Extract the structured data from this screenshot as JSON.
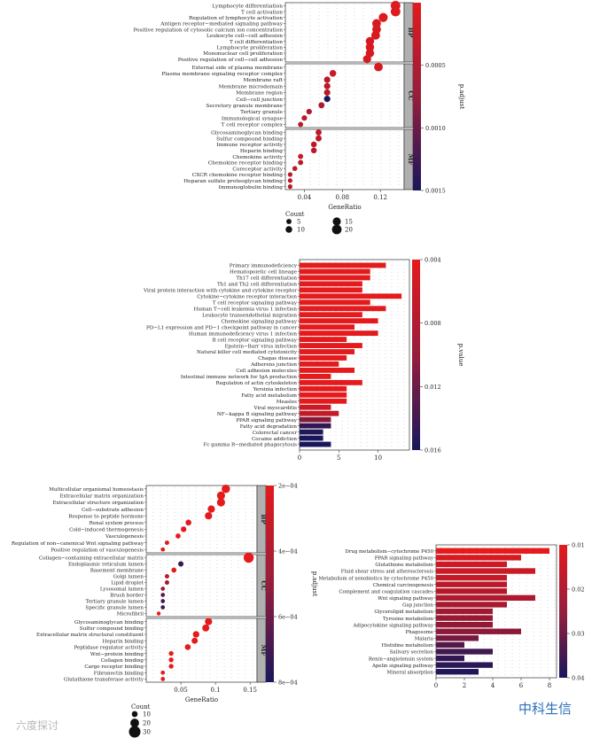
{
  "watermarks": {
    "left": "六度探讨",
    "right": "中科生信"
  },
  "chart_data": [
    {
      "type": "scatter",
      "subtype": "dotplot-faceted",
      "id": "panel_a",
      "xlabel": "GeneRatio",
      "xticks": [
        0.04,
        0.08,
        0.12
      ],
      "xlim": [
        0.02,
        0.145
      ],
      "facets": [
        {
          "name": "BP",
          "terms": [
            {
              "term": "Lymphocyte differentiation",
              "ratio": 0.136,
              "p": 5e-05,
              "count": 20
            },
            {
              "term": "T cell activation",
              "ratio": 0.136,
              "p": 5e-05,
              "count": 20
            },
            {
              "term": "Regulation of lymphocyte activation",
              "ratio": 0.123,
              "p": 5e-05,
              "count": 18
            },
            {
              "term": "Antigen receptor−mediated signaling pathway",
              "ratio": 0.116,
              "p": 0.0001,
              "count": 17
            },
            {
              "term": "Positive regulation of cytosolic calcium ion concentration",
              "ratio": 0.116,
              "p": 0.0001,
              "count": 17
            },
            {
              "term": "Leukocyte cell−cell adhesion",
              "ratio": 0.115,
              "p": 0.0001,
              "count": 17
            },
            {
              "term": "T cell differentiation",
              "ratio": 0.109,
              "p": 0.0001,
              "count": 16
            },
            {
              "term": "Lymphocyte proliferation",
              "ratio": 0.109,
              "p": 0.0001,
              "count": 16
            },
            {
              "term": "Mononuclear cell proliferation",
              "ratio": 0.109,
              "p": 0.0001,
              "count": 16
            },
            {
              "term": "Positive regulation of cell−cell adhesion",
              "ratio": 0.106,
              "p": 0.0001,
              "count": 15
            }
          ]
        },
        {
          "name": "CC",
          "terms": [
            {
              "term": "External side of plasma membrane",
              "ratio": 0.118,
              "p": 0.0001,
              "count": 17
            },
            {
              "term": "Plasma membrane signaling receptor complex",
              "ratio": 0.07,
              "p": 0.0002,
              "count": 10
            },
            {
              "term": "Membrane raft",
              "ratio": 0.064,
              "p": 0.0003,
              "count": 9
            },
            {
              "term": "Membrane microdomain",
              "ratio": 0.064,
              "p": 0.0003,
              "count": 9
            },
            {
              "term": "Membrane region",
              "ratio": 0.064,
              "p": 0.0003,
              "count": 9
            },
            {
              "term": "Cell−cell junction",
              "ratio": 0.064,
              "p": 0.0015,
              "count": 9
            },
            {
              "term": "Secretory granule membrane",
              "ratio": 0.058,
              "p": 0.0004,
              "count": 8
            },
            {
              "term": "Tertiary granule",
              "ratio": 0.045,
              "p": 0.0004,
              "count": 6
            },
            {
              "term": "Immunological synapse",
              "ratio": 0.04,
              "p": 0.0003,
              "count": 6
            },
            {
              "term": "T cell receptor complex",
              "ratio": 0.036,
              "p": 0.0003,
              "count": 5
            }
          ]
        },
        {
          "name": "MF",
          "terms": [
            {
              "term": "Glycosaminoglycan binding",
              "ratio": 0.055,
              "p": 0.0003,
              "count": 8
            },
            {
              "term": "Sulfur compound binding",
              "ratio": 0.055,
              "p": 0.0003,
              "count": 8
            },
            {
              "term": "Immune receptor activity",
              "ratio": 0.05,
              "p": 0.0003,
              "count": 7
            },
            {
              "term": "Heparin binding",
              "ratio": 0.05,
              "p": 0.0003,
              "count": 7
            },
            {
              "term": "Chemokine activity",
              "ratio": 0.036,
              "p": 0.0002,
              "count": 5
            },
            {
              "term": "Chemokine receptor binding",
              "ratio": 0.036,
              "p": 0.0003,
              "count": 5
            },
            {
              "term": "Coreceptor activity",
              "ratio": 0.03,
              "p": 0.0003,
              "count": 4
            },
            {
              "term": "CXCR chemokine receptor binding",
              "ratio": 0.025,
              "p": 0.0003,
              "count": 3
            },
            {
              "term": "Heparan sulfate proteoglycan binding",
              "ratio": 0.025,
              "p": 0.0003,
              "count": 3
            },
            {
              "term": "Immunoglobulin binding",
              "ratio": 0.025,
              "p": 0.0003,
              "count": 3
            }
          ]
        }
      ],
      "color_scale": {
        "title": "p.adjust",
        "range": [
          0.0,
          0.0015
        ],
        "ticks": [
          "0.0005",
          "0.0010",
          "0.0015"
        ]
      },
      "size_legend": {
        "title": "Count",
        "values": [
          5,
          10,
          15,
          20
        ]
      }
    },
    {
      "type": "bar",
      "subtype": "horizontal",
      "id": "panel_b",
      "categories": [
        "Primary immunodeficiency",
        "Hematopoietic cell lineage",
        "Th17 cell differentiation",
        "Th1 and Th2 cell differentiation",
        "Viral protein interaction with cytokine and cytokine receptor",
        "Cytokine−cytokine receptor interaction",
        "T cell receptor signaling pathway",
        "Human T−cell leukemia virus 1 infection",
        "Leukocyte transendothelial migration",
        "Chemokine signaling pathway",
        "PD−L1 expression and PD−1 checkpoint pathway in cancer",
        "Human immunodeficiency virus 1 infection",
        "B cell receptor signaling pathway",
        "Epstein−Barr virus infection",
        "Natural killer cell mediated cytotoxicity",
        "Chagas disease",
        "Adherens junction",
        "Cell adhesion molecules",
        "Intestinal immune network for IgA production",
        "Regulation of actin cytoskeleton",
        "Yersinia infection",
        "Fatty acid metabolism",
        "Measles",
        "Viral myocarditis",
        "NF−kappa B signaling pathway",
        "PPAR signaling pathway",
        "Fatty acid degradation",
        "Colorectal cancer",
        "Cocaine addiction",
        "Fc gamma R−mediated phagocytosis"
      ],
      "values": [
        11,
        9,
        9,
        8,
        8,
        13,
        9,
        11,
        8,
        10,
        7,
        10,
        6,
        8,
        7,
        6,
        5,
        7,
        4,
        8,
        6,
        6,
        6,
        4,
        5,
        4,
        4,
        3,
        3,
        4
      ],
      "pvalues": [
        0.004,
        0.004,
        0.004,
        0.004,
        0.004,
        0.004,
        0.004,
        0.004,
        0.004,
        0.004,
        0.004,
        0.004,
        0.004,
        0.004,
        0.004,
        0.004,
        0.004,
        0.004,
        0.004,
        0.004,
        0.004,
        0.004,
        0.004,
        0.0055,
        0.006,
        0.0095,
        0.0145,
        0.0155,
        0.016,
        0.016
      ],
      "xticks": [
        0,
        5,
        10
      ],
      "xlim": [
        0,
        14
      ],
      "color_scale": {
        "title": "p.value",
        "range": [
          0.004,
          0.016
        ],
        "ticks": [
          "0.004",
          "0.008",
          "0.012",
          "0.016"
        ]
      }
    },
    {
      "type": "scatter",
      "subtype": "dotplot-faceted",
      "id": "panel_c",
      "xlabel": "GeneRatio",
      "xticks": [
        0.05,
        0.1,
        0.15
      ],
      "xlim": [
        0.0,
        0.16
      ],
      "facets": [
        {
          "name": "BP",
          "terms": [
            {
              "term": "Multicellular organismal homeostasis",
              "ratio": 0.115,
              "p": 0.0001,
              "count": 19
            },
            {
              "term": "Extracellular matrix organization",
              "ratio": 0.108,
              "p": 0.0001,
              "count": 18
            },
            {
              "term": "Extracellular structure organization",
              "ratio": 0.108,
              "p": 0.0001,
              "count": 18
            },
            {
              "term": "Cell−substrate adhesion",
              "ratio": 0.094,
              "p": 0.0001,
              "count": 15
            },
            {
              "term": "Response to peptide hormone",
              "ratio": 0.09,
              "p": 0.0001,
              "count": 15
            },
            {
              "term": "Renal system process",
              "ratio": 0.061,
              "p": 0.0001,
              "count": 10
            },
            {
              "term": "Cold−induced thermogenesis",
              "ratio": 0.054,
              "p": 0.0001,
              "count": 9
            },
            {
              "term": "Vasculogenesis",
              "ratio": 0.046,
              "p": 0.0001,
              "count": 7
            },
            {
              "term": "Regulation of non−canonical Wnt signaling pathway",
              "ratio": 0.03,
              "p": 0.0001,
              "count": 5
            },
            {
              "term": "Positive regulation of vasculogenesis",
              "ratio": 0.024,
              "p": 0.0001,
              "count": 4
            }
          ]
        },
        {
          "name": "CC",
          "terms": [
            {
              "term": "Collagen−containing extracellular matrix",
              "ratio": 0.148,
              "p": 0.0001,
              "count": 25
            },
            {
              "term": "Endoplasmic reticulum lumen",
              "ratio": 0.05,
              "p": 0.0007,
              "count": 8
            },
            {
              "term": "Basement membrane",
              "ratio": 0.04,
              "p": 0.0002,
              "count": 7
            },
            {
              "term": "Golgi lumen",
              "ratio": 0.03,
              "p": 0.0003,
              "count": 5
            },
            {
              "term": "Lipid droplet",
              "ratio": 0.03,
              "p": 0.0004,
              "count": 5
            },
            {
              "term": "Lysosomal lumen",
              "ratio": 0.024,
              "p": 0.0004,
              "count": 4
            },
            {
              "term": "Brush border",
              "ratio": 0.024,
              "p": 0.0006,
              "count": 4
            },
            {
              "term": "Tertiary granule lumen",
              "ratio": 0.024,
              "p": 0.0007,
              "count": 4
            },
            {
              "term": "Specific granule lumen",
              "ratio": 0.024,
              "p": 0.0007,
              "count": 4
            },
            {
              "term": "Microfibril",
              "ratio": 0.018,
              "p": 0.0002,
              "count": 3
            }
          ]
        },
        {
          "name": "MF",
          "terms": [
            {
              "term": "Glycosaminoglycan binding",
              "ratio": 0.09,
              "p": 0.0001,
              "count": 15
            },
            {
              "term": "Sulfur compound binding",
              "ratio": 0.086,
              "p": 0.0001,
              "count": 14
            },
            {
              "term": "Extracellular matrix structural constituent",
              "ratio": 0.072,
              "p": 0.0001,
              "count": 12
            },
            {
              "term": "Heparin binding",
              "ratio": 0.07,
              "p": 0.0001,
              "count": 11
            },
            {
              "term": "Peptidase regulator activity",
              "ratio": 0.06,
              "p": 0.0001,
              "count": 10
            },
            {
              "term": "Wnt−protein binding",
              "ratio": 0.036,
              "p": 0.0001,
              "count": 6
            },
            {
              "term": "Collagen binding",
              "ratio": 0.036,
              "p": 0.0001,
              "count": 6
            },
            {
              "term": "Cargo receptor binding",
              "ratio": 0.036,
              "p": 0.0001,
              "count": 6
            },
            {
              "term": "Fibronectin binding",
              "ratio": 0.024,
              "p": 0.0001,
              "count": 4
            },
            {
              "term": "Glutathione transferase activity",
              "ratio": 0.024,
              "p": 0.0001,
              "count": 4
            }
          ]
        }
      ],
      "color_scale": {
        "title": "p.adjust",
        "range": [
          0.0002,
          0.0008
        ],
        "ticks": [
          "2e−04",
          "4e−04",
          "6e−04",
          "8e−04"
        ]
      },
      "size_legend": {
        "title": "Count",
        "values": [
          10,
          20,
          30
        ]
      }
    },
    {
      "type": "bar",
      "subtype": "horizontal",
      "id": "panel_d",
      "categories": [
        "Drug metabolism−cytochrome P450",
        "PPAR signaling pathway",
        "Glutathione metabolism",
        "Fluid shear stress and atherosclerosis",
        "Metabolism of xenobiotics by cytochrome P450",
        "Chemical carcinogenesis",
        "Complement and coagulation cascades",
        "Wnt signaling pathway",
        "Gap junction",
        "Glycerolipid metabolism",
        "Tyrosine metabolism",
        "Adipocytokine signaling pathway",
        "Phagosome",
        "Malaria",
        "Histidine metabolism",
        "Salivary secretion",
        "Renin−angiotensin system",
        "Apelin signaling pathway",
        "Mineral absorption"
      ],
      "values": [
        8,
        6,
        5,
        7,
        5,
        5,
        5,
        7,
        5,
        4,
        4,
        4,
        6,
        3,
        2,
        4,
        2,
        4,
        3
      ],
      "pvalues": [
        0.01,
        0.012,
        0.014,
        0.014,
        0.015,
        0.016,
        0.017,
        0.018,
        0.019,
        0.02,
        0.021,
        0.022,
        0.023,
        0.026,
        0.031,
        0.034,
        0.036,
        0.037,
        0.039
      ],
      "xticks": [
        0,
        2,
        4,
        6,
        8
      ],
      "xlim": [
        0,
        8.5
      ],
      "color_scale": {
        "title": "p.value",
        "range": [
          0.01,
          0.04
        ],
        "ticks": [
          "0.01",
          "0.02",
          "0.03",
          "0.04"
        ]
      }
    }
  ]
}
